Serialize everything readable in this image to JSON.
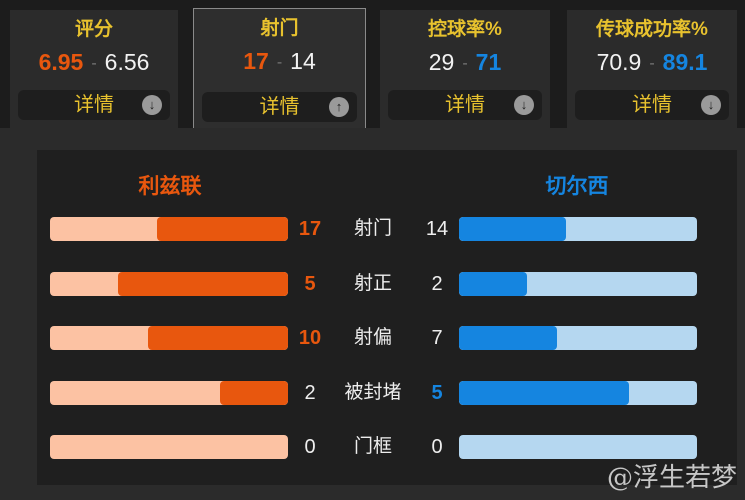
{
  "colors": {
    "home": "#e8570e",
    "home_light": "#fcc2a3",
    "away": "#1585e0",
    "away_light": "#b5d7f0",
    "title": "#e8c22e"
  },
  "summary_cards": [
    {
      "title": "评分",
      "home": "6.95",
      "away": "6.56",
      "winner": "home",
      "details_label": "详情",
      "arrow_icon": "arrow-down-icon",
      "arrow": "↓",
      "selected": false
    },
    {
      "title": "射门",
      "home": "17",
      "away": "14",
      "winner": "home",
      "details_label": "详情",
      "arrow_icon": "arrow-up-icon",
      "arrow": "↑",
      "selected": true
    },
    {
      "title": "控球率%",
      "home": "29",
      "away": "71",
      "winner": "away",
      "details_label": "详情",
      "arrow_icon": "arrow-down-icon",
      "arrow": "↓",
      "selected": false
    },
    {
      "title": "传球成功率%",
      "home": "70.9",
      "away": "89.1",
      "winner": "away",
      "details_label": "详情",
      "arrow_icon": "arrow-down-icon",
      "arrow": "↓",
      "selected": false
    }
  ],
  "teams": {
    "home": "利兹联",
    "away": "切尔西"
  },
  "stats": [
    {
      "label": "射门",
      "home": 17,
      "away": 14
    },
    {
      "label": "射正",
      "home": 5,
      "away": 2
    },
    {
      "label": "射偏",
      "home": 10,
      "away": 7
    },
    {
      "label": "被封堵",
      "home": 2,
      "away": 5
    },
    {
      "label": "门框",
      "home": 0,
      "away": 0
    }
  ],
  "watermark": "@浮生若梦"
}
